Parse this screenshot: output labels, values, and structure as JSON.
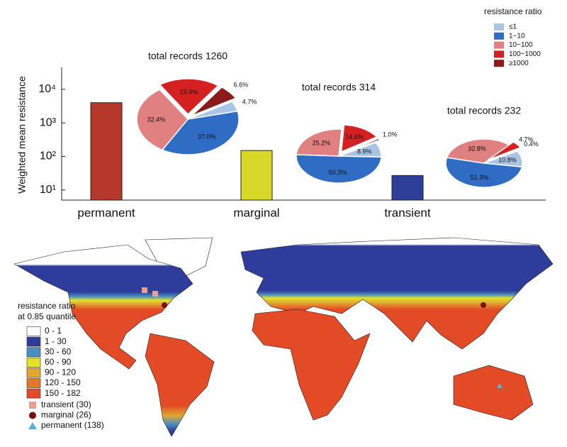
{
  "chart_data": [
    {
      "type": "bar",
      "y_label": "Weighted mean resistance",
      "categories": [
        "permanent",
        "marginal",
        "transient"
      ],
      "values": [
        4000,
        150,
        27
      ],
      "colors": [
        "#b5382a",
        "#d8d829",
        "#2e3f99"
      ],
      "log_scale": true,
      "ylim": [
        5,
        45000
      ],
      "yticks": [
        {
          "value": 10,
          "label": "10¹"
        },
        {
          "value": 100,
          "label": "10²"
        },
        {
          "value": 1000,
          "label": "10³"
        },
        {
          "value": 10000,
          "label": "10⁴"
        }
      ]
    },
    {
      "type": "pie",
      "title": "total records 1260",
      "legend_title": "resistance ratio",
      "categories": [
        "≤1",
        "1−10",
        "10−100",
        "100−1000",
        "≥1000"
      ],
      "colors": [
        "#a9c4e4",
        "#2f6cc4",
        "#e08080",
        "#d42020",
        "#8b1a1a"
      ],
      "explode": [
        false,
        false,
        false,
        true,
        true
      ],
      "values": [
        4.7,
        37.0,
        32.4,
        19.4,
        6.6
      ],
      "value_labels": [
        "4.7%",
        "37.0%",
        "32.4%",
        "19.4%",
        "6.6%"
      ]
    },
    {
      "type": "pie",
      "title": "total records 314",
      "categories": [
        "≤1",
        "1−10",
        "10−100",
        "100−1000",
        "≥1000"
      ],
      "colors": [
        "#a9c4e4",
        "#2f6cc4",
        "#e08080",
        "#d42020",
        "#8b1a1a"
      ],
      "explode": [
        false,
        false,
        false,
        true,
        true
      ],
      "values": [
        8.9,
        50.3,
        25.2,
        14.6,
        1.0
      ],
      "value_labels": [
        "8.9%",
        "50.3%",
        "25.2%",
        "14.6%",
        "1.0%"
      ]
    },
    {
      "type": "pie",
      "title": "total records 232",
      "categories": [
        "≤1",
        "1−10",
        "10−100",
        "100−1000",
        "≥1000"
      ],
      "colors": [
        "#a9c4e4",
        "#2f6cc4",
        "#e08080",
        "#d42020",
        "#8b1a1a"
      ],
      "explode": [
        false,
        false,
        false,
        true,
        true
      ],
      "values": [
        10.8,
        51.3,
        32.8,
        4.7,
        0.4
      ],
      "value_labels": [
        "10.8%",
        "51.3%",
        "32.8%",
        "4.7%",
        "0.4%"
      ]
    }
  ],
  "map": {
    "legend_title": [
      "resistance ratio",
      "at 0.85 quantile"
    ],
    "classes": [
      {
        "label": "0 - 1",
        "color": "#ffffff"
      },
      {
        "label": "1 - 30",
        "color": "#2e3d9c"
      },
      {
        "label": "30 - 60",
        "color": "#4a8fc0"
      },
      {
        "label": "60 - 90",
        "color": "#e2e22a"
      },
      {
        "label": "90 - 120",
        "color": "#e0a830"
      },
      {
        "label": "120 - 150",
        "color": "#e07a2a"
      },
      {
        "label": "150 - 182",
        "color": "#e34a26"
      }
    ],
    "points": [
      {
        "label": "transient (30)",
        "color": "#e8a090",
        "shape": "square"
      },
      {
        "label": "marginal (26)",
        "color": "#7a1010",
        "shape": "circle"
      },
      {
        "label": "permanent (138)",
        "color": "#5aaee0",
        "shape": "triangle"
      }
    ]
  }
}
